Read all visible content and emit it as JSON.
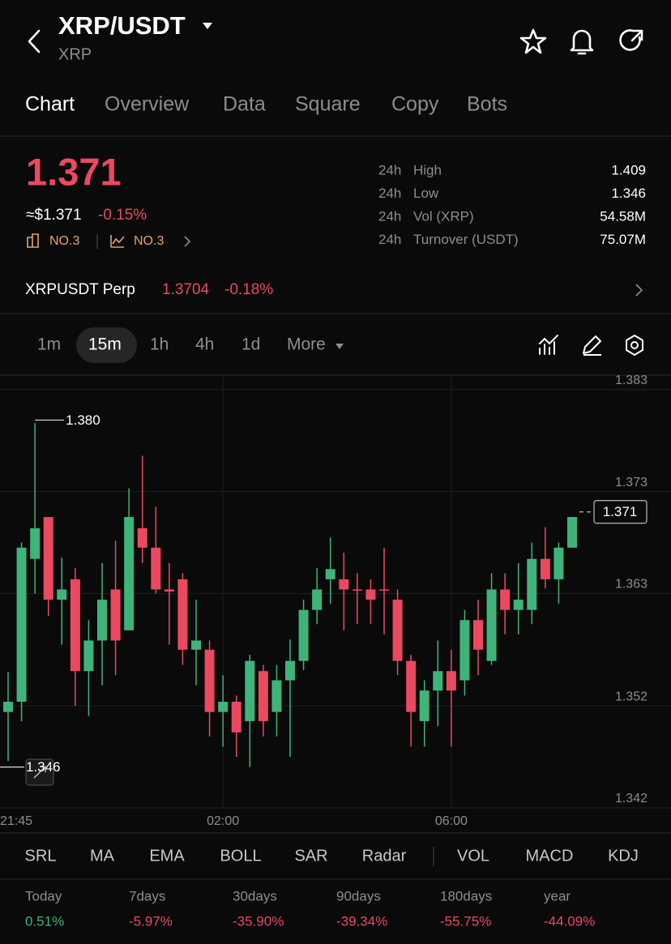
{
  "header": {
    "title": "XRP/USDT",
    "subtitle": "XRP"
  },
  "tabs": [
    "Chart",
    "Overview",
    "Data",
    "Square",
    "Copy",
    "Bots"
  ],
  "price": {
    "last": "1.371",
    "usd": "≈$1.371",
    "change": "-0.15%",
    "rank_a": "NO.3",
    "rank_b": "NO.3"
  },
  "stats": [
    {
      "period": "24h",
      "label": "High",
      "value": "1.409"
    },
    {
      "period": "24h",
      "label": "Low",
      "value": "1.346"
    },
    {
      "period": "24h",
      "label": "Vol (XRP)",
      "value": "54.58M"
    },
    {
      "period": "24h",
      "label": "Turnover (USDT)",
      "value": "75.07M"
    }
  ],
  "perp": {
    "name": "XRPUSDT Perp",
    "price": "1.3704",
    "change": "-0.18%"
  },
  "intervals": [
    "1m",
    "15m",
    "1h",
    "4h",
    "1d",
    "More"
  ],
  "chart_data": {
    "type": "candlestick",
    "categories": [
      "21:45",
      null,
      null,
      null,
      null,
      null,
      null,
      null,
      null,
      null,
      null,
      null,
      null,
      null,
      null,
      null,
      "02:00",
      null,
      null,
      null,
      null,
      null,
      null,
      null,
      null,
      null,
      null,
      null,
      null,
      null,
      null,
      null,
      null,
      "06:00",
      null,
      null,
      null,
      null,
      null,
      null,
      null,
      null,
      null
    ],
    "open": [
      1.3514,
      1.3524,
      1.3664,
      1.3705,
      1.3624,
      1.3644,
      1.3554,
      1.3584,
      1.3634,
      1.3594,
      1.3694,
      1.3675,
      1.3634,
      1.3644,
      1.3575,
      1.3575,
      1.3514,
      1.3524,
      1.3505,
      1.3554,
      1.3514,
      1.3545,
      1.3564,
      1.3614,
      1.3644,
      1.3644,
      1.3634,
      1.3634,
      1.3634,
      1.3624,
      1.3564,
      1.3505,
      1.3535,
      1.3554,
      1.3545,
      1.3604,
      1.3564,
      1.3634,
      1.3614,
      1.3614,
      1.3664,
      1.3644,
      1.3675
    ],
    "high": [
      1.3553,
      1.368,
      1.3797,
      1.3705,
      1.3665,
      1.3655,
      1.3604,
      1.366,
      1.3682,
      1.3733,
      1.3765,
      1.3715,
      1.366,
      1.365,
      1.3624,
      1.3584,
      1.355,
      1.353,
      1.357,
      1.356,
      1.356,
      1.3585,
      1.3624,
      1.3655,
      1.3685,
      1.367,
      1.365,
      1.3644,
      1.3675,
      1.3634,
      1.357,
      1.3545,
      1.3584,
      1.3575,
      1.3614,
      1.3624,
      1.365,
      1.365,
      1.366,
      1.368,
      1.3695,
      1.368,
      1.3705
    ],
    "low": [
      1.3466,
      1.3505,
      1.363,
      1.3608,
      1.358,
      1.352,
      1.351,
      1.354,
      1.355,
      1.3594,
      1.366,
      1.363,
      1.358,
      1.356,
      1.354,
      1.349,
      1.348,
      1.347,
      1.346,
      1.349,
      1.349,
      1.347,
      1.3555,
      1.36,
      1.362,
      1.3594,
      1.36,
      1.36,
      1.359,
      1.355,
      1.348,
      1.348,
      1.35,
      1.348,
      1.353,
      1.355,
      1.356,
      1.359,
      1.359,
      1.36,
      1.3635,
      1.362,
      1.3675
    ],
    "close": [
      1.3524,
      1.3675,
      1.3694,
      1.3624,
      1.3634,
      1.3554,
      1.3584,
      1.3624,
      1.3584,
      1.3705,
      1.3675,
      1.3634,
      1.3632,
      1.3575,
      1.3584,
      1.3514,
      1.3524,
      1.3494,
      1.3564,
      1.3505,
      1.3545,
      1.3564,
      1.3614,
      1.3634,
      1.3654,
      1.3634,
      1.3633,
      1.3624,
      1.3633,
      1.3564,
      1.3514,
      1.3535,
      1.3554,
      1.3535,
      1.3604,
      1.3575,
      1.3634,
      1.3614,
      1.3624,
      1.3664,
      1.3644,
      1.3675,
      1.3705
    ],
    "up_color": "#3fb47a",
    "down_color": "#ea4960",
    "ylim": [
      1.342,
      1.3844
    ],
    "yticks": [
      1.342,
      1.352,
      1.363,
      1.373,
      1.383
    ],
    "grid": true,
    "annotations": [
      {
        "value": 1.38,
        "label": "1.380"
      },
      {
        "value": 1.346,
        "label": "1.346"
      },
      {
        "value": 1.371,
        "label": "1.371"
      }
    ]
  },
  "indicators": [
    "SRL",
    "MA",
    "EMA",
    "BOLL",
    "SAR",
    "Radar",
    "VOL",
    "MACD",
    "KDJ"
  ],
  "performance": [
    {
      "period": "Today",
      "change": "0.51%"
    },
    {
      "period": "7days",
      "change": "-5.97%"
    },
    {
      "period": "30days",
      "change": "-35.90%"
    },
    {
      "period": "90days",
      "change": "-39.34%"
    },
    {
      "period": "180days",
      "change": "-55.75%"
    },
    {
      "period": "year",
      "change": "-44.09%"
    }
  ]
}
